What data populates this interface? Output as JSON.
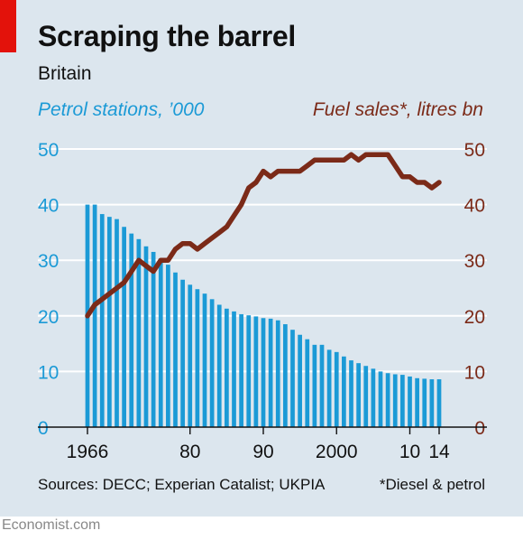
{
  "header": {
    "title": "Scraping the barrel",
    "subtitle": "Britain"
  },
  "footer": {
    "source": "Sources: DECC; Experian Catalist; UKPIA",
    "note": "*Diesel & petrol",
    "brand": "Economist.com"
  },
  "colors": {
    "bars": "#1b9ad6",
    "line": "#7b2a18",
    "background": "#dce6ee",
    "accent": "#e3120b"
  },
  "chart_data": {
    "type": "bar",
    "x": [
      1966,
      1967,
      1968,
      1969,
      1970,
      1971,
      1972,
      1973,
      1974,
      1975,
      1976,
      1977,
      1978,
      1979,
      1980,
      1981,
      1982,
      1983,
      1984,
      1985,
      1986,
      1987,
      1988,
      1989,
      1990,
      1991,
      1992,
      1993,
      1994,
      1995,
      1996,
      1997,
      1998,
      1999,
      2000,
      2001,
      2002,
      2003,
      2004,
      2005,
      2006,
      2007,
      2008,
      2009,
      2010,
      2011,
      2012,
      2013,
      2014
    ],
    "x_tick_labels": [
      {
        "x": 1966,
        "label": "1966"
      },
      {
        "x": 1980,
        "label": "80"
      },
      {
        "x": 1990,
        "label": "90"
      },
      {
        "x": 2000,
        "label": "2000"
      },
      {
        "x": 2010,
        "label": "10"
      },
      {
        "x": 2014,
        "label": "14"
      }
    ],
    "left_axis": {
      "label": "Petrol stations, ’000",
      "ylim": [
        0,
        50
      ],
      "ticks": [
        0,
        10,
        20,
        30,
        40,
        50
      ]
    },
    "right_axis": {
      "label": "Fuel sales*, litres bn",
      "ylim": [
        0,
        50
      ],
      "ticks": [
        0,
        10,
        20,
        30,
        40,
        50
      ]
    },
    "series": [
      {
        "name": "Petrol stations, ’000",
        "type": "bar",
        "axis": "left",
        "values": [
          40,
          40,
          38.3,
          37.8,
          37.4,
          36,
          34.8,
          33.8,
          32.5,
          31.5,
          30.3,
          29.2,
          27.8,
          26.5,
          25.6,
          24.8,
          24,
          23,
          22,
          21.3,
          20.8,
          20.3,
          20.1,
          19.9,
          19.6,
          19.5,
          19.2,
          18.5,
          17.5,
          16.6,
          15.8,
          14.8,
          14.8,
          13.9,
          13.5,
          12.7,
          12,
          11.5,
          11,
          10.5,
          10,
          9.7,
          9.5,
          9.4,
          9.1,
          8.8,
          8.7,
          8.6,
          8.6
        ]
      },
      {
        "name": "Fuel sales*, litres bn",
        "type": "line",
        "axis": "right",
        "values": [
          20,
          22,
          23,
          24,
          25,
          26,
          28,
          30,
          29,
          28,
          30,
          30,
          32,
          33,
          33,
          32,
          33,
          34,
          35,
          36,
          38,
          40,
          43,
          44,
          46,
          45,
          46,
          46,
          46,
          46,
          47,
          48,
          48,
          48,
          48,
          48,
          49,
          48,
          49,
          49,
          49,
          49,
          47,
          45,
          45,
          44,
          44,
          43,
          44
        ]
      }
    ],
    "grid": true
  }
}
